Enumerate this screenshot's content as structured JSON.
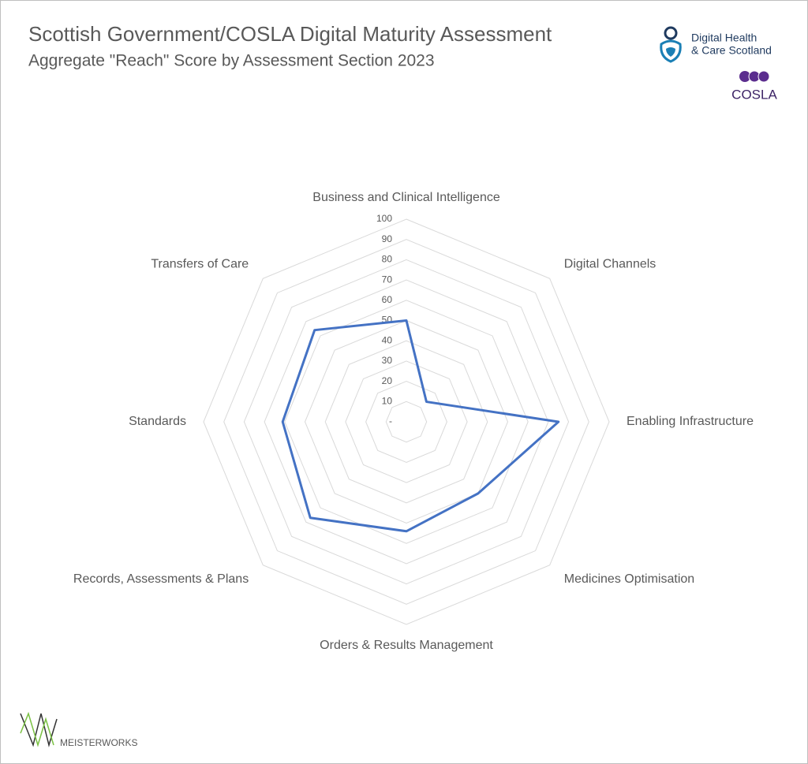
{
  "chart_data": {
    "type": "radar",
    "title": "Scottish Government/COSLA Digital Maturity Assessment",
    "subtitle": "Aggregate \"Reach\" Score by Assessment Section 2023",
    "categories": [
      "Business and Clinical Intelligence",
      "Digital Channels",
      "Enabling Infrastructure",
      "Medicines Optimisation",
      "Orders & Results Management",
      "Records, Assessments & Plans",
      "Standards",
      "Transfers of Care"
    ],
    "values": [
      50,
      14,
      75,
      50,
      54,
      67,
      61,
      64
    ],
    "color": "#4472c4",
    "ylim": [
      0,
      100
    ],
    "yticks": [
      {
        "value": 0,
        "label": "-"
      },
      10,
      20,
      30,
      40,
      50,
      60,
      70,
      80,
      90,
      100
    ],
    "grid": true
  },
  "logos": {
    "dhcs_line1": "Digital Health",
    "dhcs_line2": "& Care Scotland",
    "cosla": "COSLA",
    "meisterworks": "MEISTERWORKS"
  }
}
